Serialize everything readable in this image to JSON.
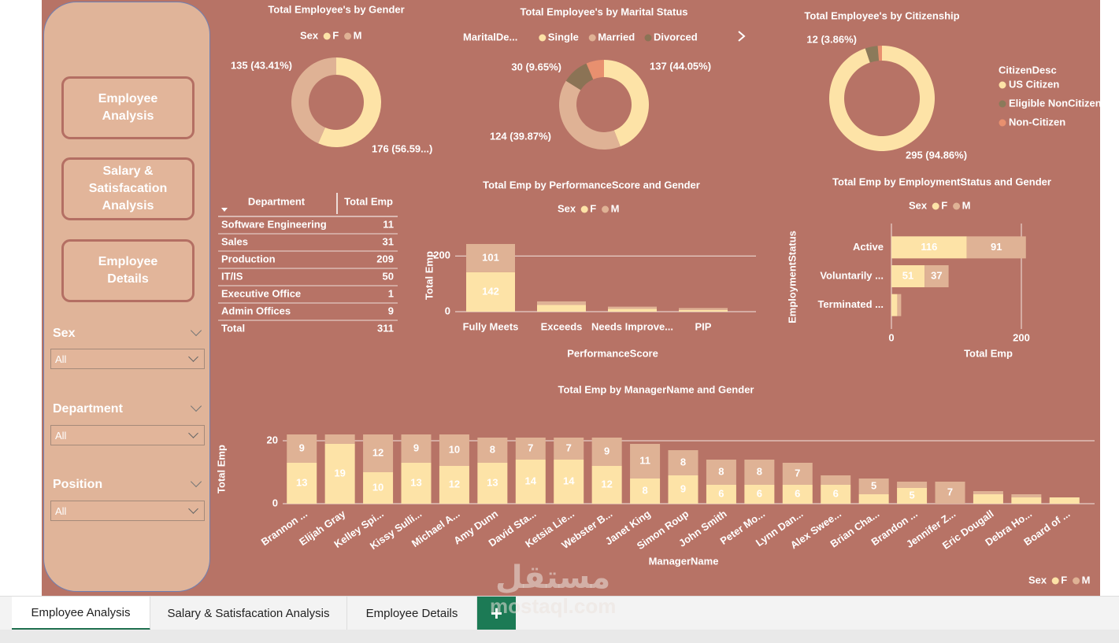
{
  "sidebar": {
    "buttons": [
      "Employee Analysis",
      "Salary & Satisfacation Analysis",
      "Employee Details"
    ],
    "filters": [
      {
        "label": "Sex",
        "value": "All"
      },
      {
        "label": "Department",
        "value": "All"
      },
      {
        "label": "Position",
        "value": "All"
      }
    ]
  },
  "gender": {
    "type": "donut",
    "title": "Total Employee's by Gender",
    "legend_title": "Sex",
    "categories": [
      "F",
      "M"
    ],
    "values": [
      176,
      135
    ],
    "value_labels": [
      "176 (56.59...)",
      "135 (43.41%)"
    ],
    "colors": [
      "#fde3a7",
      "#dfb295"
    ]
  },
  "marital": {
    "type": "donut",
    "title": "Total Employee's by Marital Status",
    "legend_title": "MaritalDe...",
    "categories": [
      "Single",
      "Married",
      "Divorced",
      null
    ],
    "values": [
      137,
      124,
      30,
      20
    ],
    "value_labels": [
      "137 (44.05%)",
      "124 (39.87%)",
      "30 (9.65%)",
      null
    ],
    "colors": [
      "#fde3a7",
      "#dfb295",
      "#8b7355",
      "#e8906f"
    ]
  },
  "citizenship": {
    "type": "donut",
    "title": "Total Employee's by Citizenship",
    "legend_title": "CitizenDesc",
    "categories": [
      "US Citizen",
      "Eligible NonCitizen",
      "Non-Citizen"
    ],
    "values": [
      295,
      12,
      4
    ],
    "value_labels": [
      "295 (94.86%)",
      "12 (3.86%)",
      null
    ],
    "colors": [
      "#fde3a7",
      "#8b7a5a",
      "#e8906f"
    ]
  },
  "department_table": {
    "columns": [
      "Department",
      "Total Emp"
    ],
    "rows": [
      [
        "Software Engineering",
        11
      ],
      [
        "Sales",
        31
      ],
      [
        "Production",
        209
      ],
      [
        "IT/IS",
        50
      ],
      [
        "Executive Office",
        1
      ],
      [
        "Admin Offices",
        9
      ]
    ],
    "total": [
      "Total",
      311
    ]
  },
  "performance": {
    "type": "stacked_bar",
    "title": "Total Emp by PerformanceScore and Gender",
    "legend_title": "Sex",
    "x_label": "PerformanceScore",
    "y_label": "Total Emp",
    "categories": [
      "Fully Meets",
      "Exceeds",
      "Needs Improve...",
      "PIP"
    ],
    "series": [
      {
        "name": "F",
        "color": "#fde3a7",
        "values": [
          142,
          24,
          10,
          6
        ],
        "value_labels": [
          142,
          null,
          null,
          null
        ]
      },
      {
        "name": "M",
        "color": "#dfb295",
        "values": [
          101,
          13,
          8,
          7
        ],
        "value_labels": [
          101,
          null,
          null,
          null
        ]
      }
    ],
    "ylim": [
      0,
      260
    ],
    "yticks": [
      0,
      200
    ],
    "grid": true
  },
  "employment": {
    "type": "stacked_hbar",
    "title": "Total Emp by EmploymentStatus and Gender",
    "legend_title": "Sex",
    "x_label": "Total Emp",
    "y_label": "EmploymentStatus",
    "categories": [
      "Active",
      "Voluntarily ...",
      "Terminated ..."
    ],
    "series": [
      {
        "name": "F",
        "color": "#fde3a7",
        "values": [
          116,
          51,
          9
        ],
        "value_labels": [
          116,
          51,
          null
        ]
      },
      {
        "name": "M",
        "color": "#dfb295",
        "values": [
          91,
          37,
          6
        ],
        "value_labels": [
          91,
          37,
          null
        ]
      }
    ],
    "xlim": [
      0,
      300
    ],
    "xticks": [
      0,
      200
    ],
    "grid": true
  },
  "managers": {
    "type": "stacked_bar",
    "title": "Total Emp by ManagerName and Gender",
    "legend_title": "Sex",
    "x_label": "ManagerName",
    "y_label": "Total Emp",
    "categories": [
      "Brannon ...",
      "Elijah Gray",
      "Kelley Spi...",
      "Kissy Sulli...",
      "Michael A...",
      "Amy Dunn",
      "David Sta...",
      "Ketsia Lie...",
      "Webster B...",
      "Janet King",
      "Simon Roup",
      "John Smith",
      "Peter Mo...",
      "Lynn Dan...",
      "Alex Swee...",
      "Brian Cha...",
      "Brandon ...",
      "Jennifer Z...",
      "Eric Dougall",
      "Debra Ho...",
      "Board of ..."
    ],
    "series": [
      {
        "name": "F",
        "color": "#fde3a7",
        "values": [
          13,
          19,
          10,
          13,
          12,
          13,
          14,
          14,
          12,
          8,
          9,
          6,
          6,
          6,
          6,
          3,
          5,
          0,
          3,
          2,
          2
        ],
        "value_labels": [
          13,
          19,
          10,
          13,
          12,
          13,
          14,
          14,
          12,
          8,
          9,
          6,
          6,
          6,
          6,
          null,
          5,
          null,
          null,
          null,
          null
        ]
      },
      {
        "name": "M",
        "color": "#dfb295",
        "values": [
          9,
          3,
          12,
          9,
          10,
          8,
          7,
          7,
          9,
          11,
          8,
          8,
          8,
          7,
          3,
          5,
          2,
          7,
          1,
          1,
          0
        ],
        "value_labels": [
          9,
          null,
          12,
          9,
          10,
          8,
          7,
          7,
          9,
          11,
          8,
          8,
          8,
          7,
          null,
          5,
          null,
          7,
          null,
          null,
          null
        ]
      }
    ],
    "ylim": [
      0,
      22
    ],
    "yticks": [
      0,
      20
    ],
    "grid": true
  },
  "tabs": [
    "Employee Analysis",
    "Salary & Satisfacation Analysis",
    "Employee Details"
  ],
  "watermark": [
    "مستقل",
    "mostaql.com"
  ]
}
